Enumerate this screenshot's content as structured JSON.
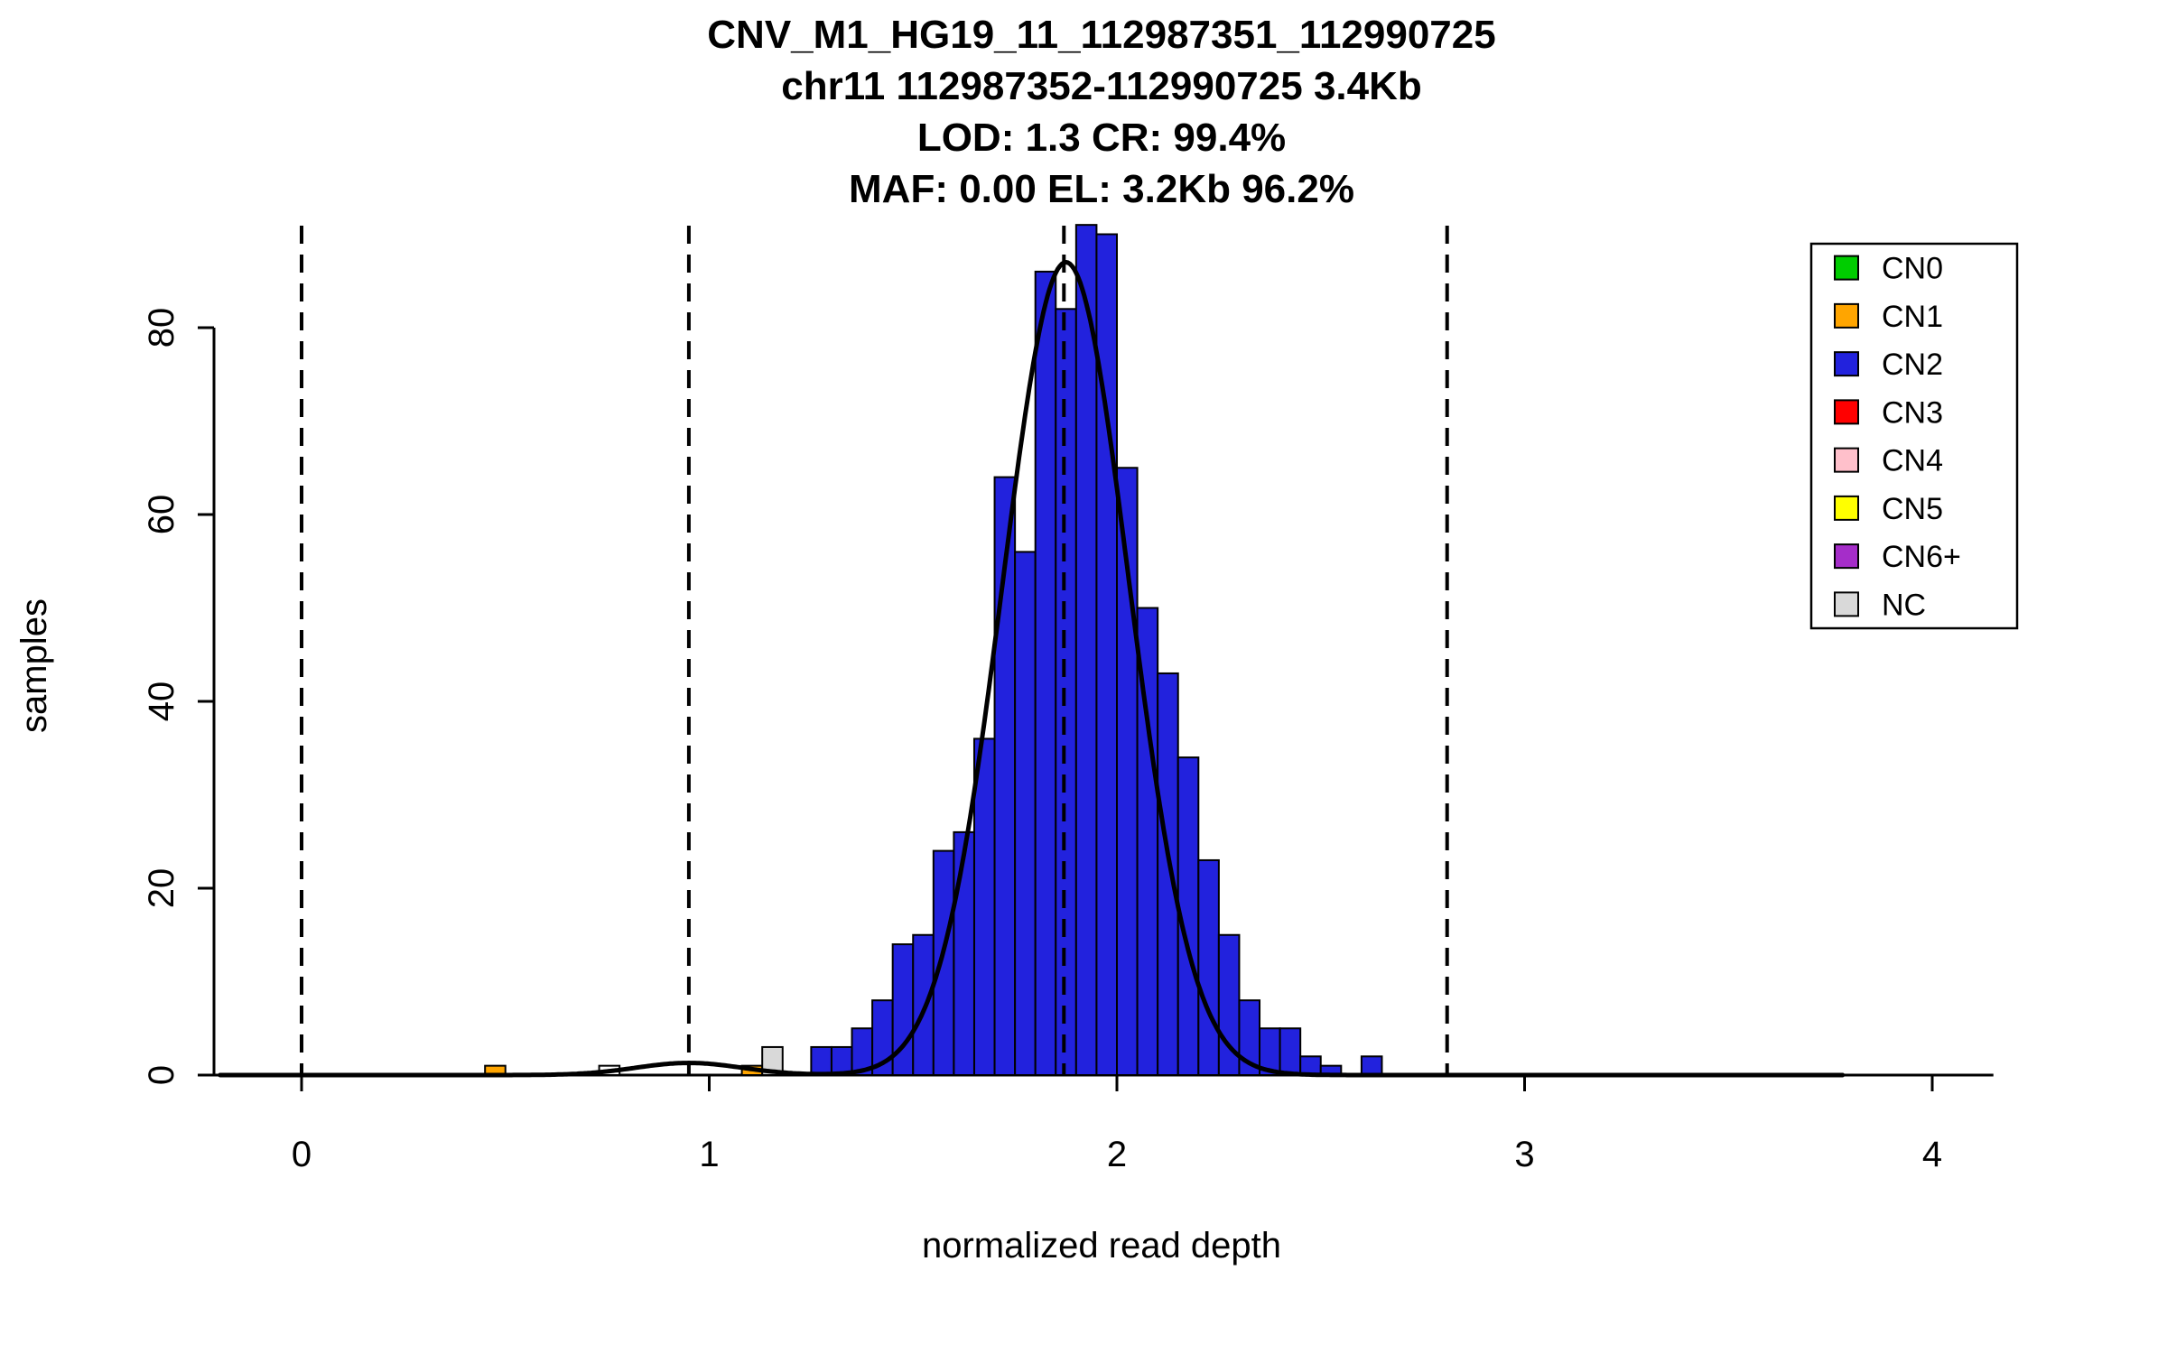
{
  "chart_data": {
    "type": "bar",
    "title_lines": [
      "CNV_M1_HG19_11_112987351_112990725",
      "chr11 112987352-112990725 3.4Kb",
      "LOD: 1.3 CR: 99.4%",
      "MAF: 0.00 EL: 3.2Kb 96.2%"
    ],
    "xlabel": "normalized read depth",
    "ylabel": "samples",
    "xlim": [
      -0.25,
      4.15
    ],
    "ylim": [
      0,
      91
    ],
    "x_ticks": [
      0,
      1,
      2,
      3,
      4
    ],
    "y_ticks": [
      0,
      20,
      40,
      60,
      80
    ],
    "grid": false,
    "bin_width": 0.05,
    "bars": [
      {
        "x": 0.45,
        "h": 1,
        "color": "CN1"
      },
      {
        "x": 0.73,
        "h": 1,
        "color": "none"
      },
      {
        "x": 1.08,
        "h": 1,
        "color": "CN1"
      },
      {
        "x": 1.13,
        "h": 3,
        "color": "NC"
      },
      {
        "x": 1.25,
        "h": 3,
        "color": "CN2"
      },
      {
        "x": 1.3,
        "h": 3,
        "color": "CN2"
      },
      {
        "x": 1.35,
        "h": 5,
        "color": "CN2"
      },
      {
        "x": 1.4,
        "h": 8,
        "color": "CN2"
      },
      {
        "x": 1.45,
        "h": 14,
        "color": "CN2"
      },
      {
        "x": 1.5,
        "h": 15,
        "color": "CN2"
      },
      {
        "x": 1.55,
        "h": 24,
        "color": "CN2"
      },
      {
        "x": 1.6,
        "h": 26,
        "color": "CN2"
      },
      {
        "x": 1.65,
        "h": 36,
        "color": "CN2"
      },
      {
        "x": 1.7,
        "h": 64,
        "color": "CN2"
      },
      {
        "x": 1.75,
        "h": 56,
        "color": "CN2"
      },
      {
        "x": 1.8,
        "h": 86,
        "color": "CN2"
      },
      {
        "x": 1.85,
        "h": 82,
        "color": "CN2"
      },
      {
        "x": 1.9,
        "h": 91,
        "color": "CN2"
      },
      {
        "x": 1.95,
        "h": 90,
        "color": "CN2"
      },
      {
        "x": 2.0,
        "h": 65,
        "color": "CN2"
      },
      {
        "x": 2.05,
        "h": 50,
        "color": "CN2"
      },
      {
        "x": 2.1,
        "h": 43,
        "color": "CN2"
      },
      {
        "x": 2.15,
        "h": 34,
        "color": "CN2"
      },
      {
        "x": 2.2,
        "h": 23,
        "color": "CN2"
      },
      {
        "x": 2.25,
        "h": 15,
        "color": "CN2"
      },
      {
        "x": 2.3,
        "h": 8,
        "color": "CN2"
      },
      {
        "x": 2.35,
        "h": 5,
        "color": "CN2"
      },
      {
        "x": 2.4,
        "h": 5,
        "color": "CN2"
      },
      {
        "x": 2.45,
        "h": 2,
        "color": "CN2"
      },
      {
        "x": 2.5,
        "h": 1,
        "color": "CN2"
      },
      {
        "x": 2.6,
        "h": 2,
        "color": "CN2"
      }
    ],
    "dashed_lines_x": [
      0.0,
      0.95,
      1.87,
      2.81
    ],
    "density_curve": {
      "x_range": [
        -0.2,
        3.78
      ],
      "components": [
        {
          "mean": 1.875,
          "sd": 0.155,
          "amplitude": 87
        },
        {
          "mean": 0.95,
          "sd": 0.13,
          "amplitude": 1.3
        }
      ]
    },
    "legend": {
      "position": "top-right",
      "items": [
        {
          "label": "CN0",
          "color": "CN0"
        },
        {
          "label": "CN1",
          "color": "CN1"
        },
        {
          "label": "CN2",
          "color": "CN2"
        },
        {
          "label": "CN3",
          "color": "CN3"
        },
        {
          "label": "CN4",
          "color": "CN4"
        },
        {
          "label": "CN5",
          "color": "CN5"
        },
        {
          "label": "CN6+",
          "color": "CN6+"
        },
        {
          "label": "NC",
          "color": "NC"
        }
      ]
    },
    "colors": {
      "CN0": "#00CD00",
      "CN1": "#FFA500",
      "CN2": "#2222DD",
      "CN3": "#FF0000",
      "CN4": "#FFC0CB",
      "CN5": "#FFFF00",
      "CN6+": "#A52DC9",
      "NC": "#D9D9D9",
      "none": "#FFFFFF",
      "curve": "#000000",
      "axis": "#000000"
    }
  }
}
